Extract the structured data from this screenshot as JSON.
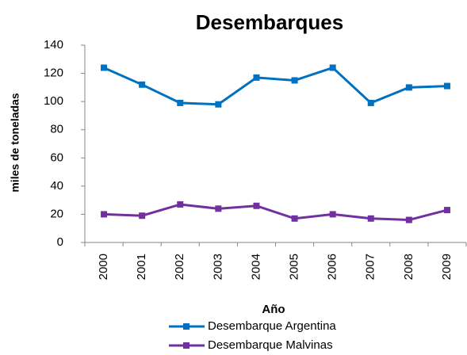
{
  "chart_data": {
    "type": "line",
    "title": "Desembarques",
    "x_label": "Año",
    "y_label": "miles de toneladas",
    "categories": [
      "2000",
      "2001",
      "2002",
      "2003",
      "2004",
      "2005",
      "2006",
      "2007",
      "2008",
      "2009"
    ],
    "series": [
      {
        "name": "Desembarque Argentina",
        "color": "#0070c0",
        "values": [
          124,
          112,
          99,
          98,
          117,
          115,
          124,
          99,
          110,
          111
        ]
      },
      {
        "name": "Desembarque Malvinas",
        "color": "#7030a0",
        "values": [
          20,
          19,
          27,
          24,
          26,
          17,
          20,
          17,
          16,
          23
        ]
      }
    ],
    "ylim": [
      0,
      140
    ],
    "yticks": [
      0,
      20,
      40,
      60,
      80,
      100,
      120,
      140
    ],
    "grid": false
  }
}
